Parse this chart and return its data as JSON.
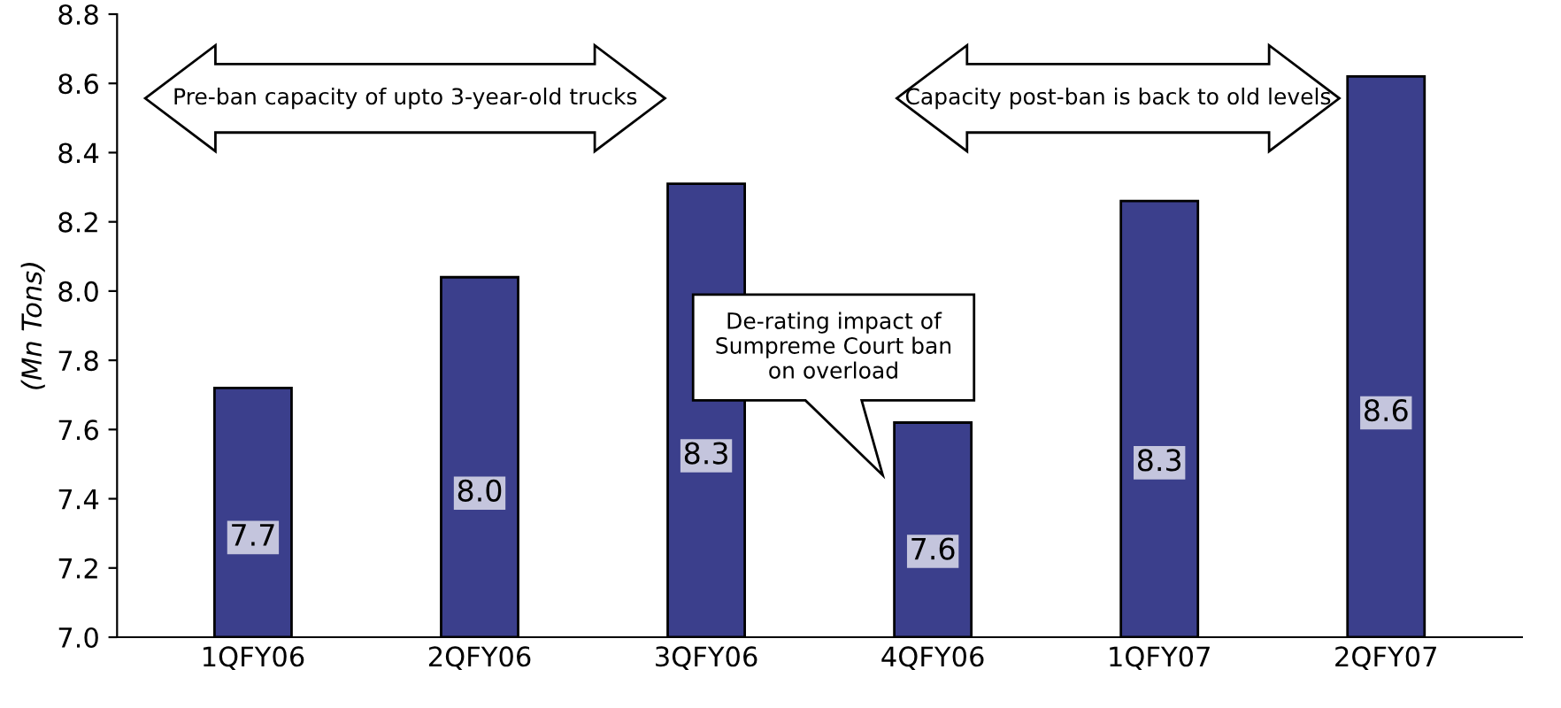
{
  "chart_data": {
    "type": "bar",
    "ylabel": "(Mn Tons)",
    "categories": [
      "1QFY06",
      "2QFY06",
      "3QFY06",
      "4QFY06",
      "1QFY07",
      "2QFY07"
    ],
    "values": [
      7.72,
      8.04,
      8.31,
      7.62,
      8.26,
      8.62
    ],
    "value_labels": [
      "7.7",
      "8.0",
      "8.3",
      "7.6",
      "8.3",
      "8.6"
    ],
    "color": "#3b3f8c",
    "ylim": [
      7.0,
      8.8
    ],
    "yticks": [
      {
        "value": 7.0,
        "label": "7.0"
      },
      7.2,
      7.4,
      7.6,
      7.8,
      {
        "value": 8.0,
        "label": "8.0"
      },
      8.2,
      8.4,
      8.6,
      8.8
    ],
    "annotations": [
      "Pre-ban capacity of upto 3-year-old trucks",
      "Capacity post-ban is back to old levels",
      "De-rating impact of Sumpreme Court ban on overload"
    ],
    "grid": false
  }
}
